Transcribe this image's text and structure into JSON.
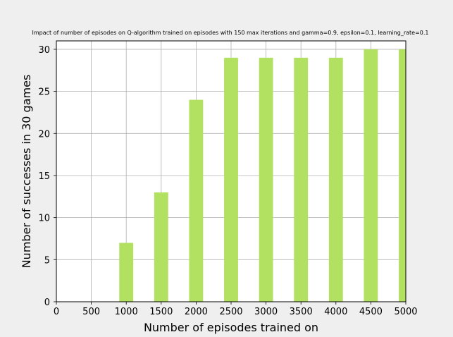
{
  "chart_data": {
    "type": "bar",
    "title": "Impact of number of episodes on Q-algorithm trained on episodes with 150 max iterations and gamma=0.9, epsilon=0.1, learning_rate=0.1",
    "xlabel": "Number of episodes trained on",
    "ylabel": "Number of successes in 30 games",
    "x": [
      1000,
      1500,
      2000,
      2500,
      3000,
      3500,
      4000,
      4500,
      5000
    ],
    "values": [
      7,
      13,
      24,
      29,
      29,
      29,
      29,
      30,
      30
    ],
    "xlim": [
      0,
      5000
    ],
    "ylim": [
      0,
      31
    ],
    "xticks": [
      0,
      500,
      1000,
      1500,
      2000,
      2500,
      3000,
      3500,
      4000,
      4500,
      5000
    ],
    "yticks": [
      0,
      5,
      10,
      15,
      20,
      25,
      30
    ],
    "grid": true,
    "bar_color": "#b2e061",
    "background_color": "#efefef",
    "plot_background": "#ffffff"
  }
}
